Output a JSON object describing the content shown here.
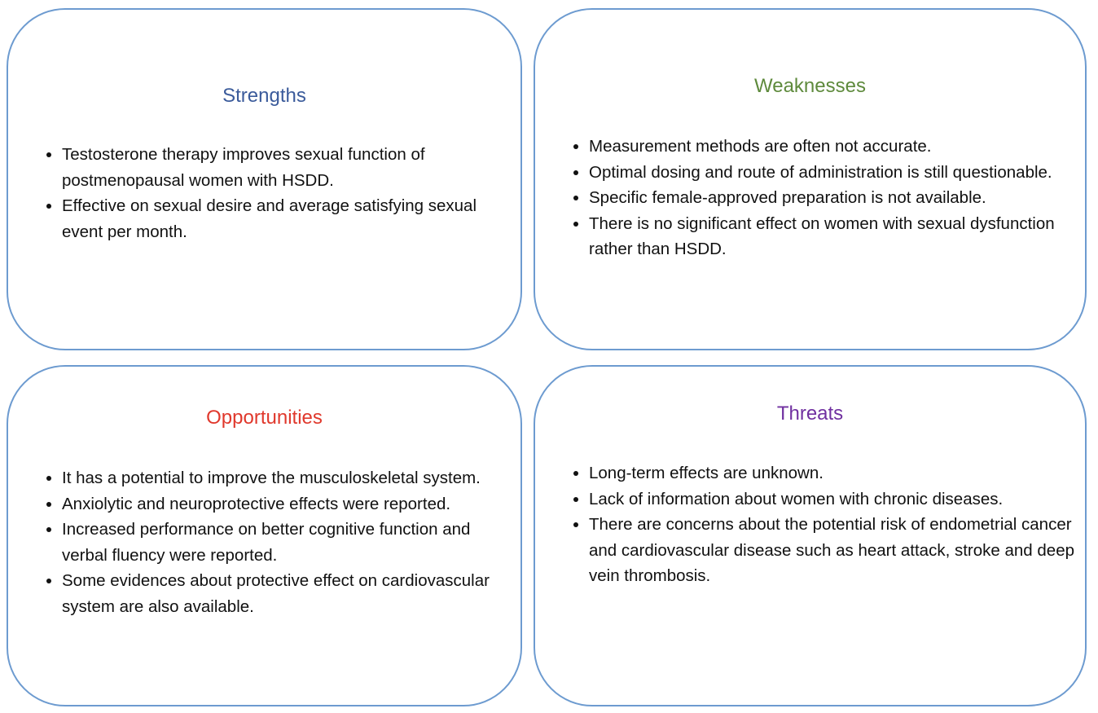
{
  "quadrants": [
    {
      "title": "Strengths",
      "color": "#3b5b9b",
      "items": [
        "Testosterone therapy improves sexual function of postmenopausal women with HSDD.",
        "Effective on sexual desire and average satisfying sexual event per month."
      ]
    },
    {
      "title": "Weaknesses",
      "color": "#5e8a3c",
      "items": [
        "Measurement methods are often not accurate.",
        "Optimal dosing and route of administration is still questionable.",
        "Specific female-approved preparation is not available.",
        "There is no significant effect on women with sexual dysfunction rather than HSDD."
      ]
    },
    {
      "title": "Opportunities",
      "color": "#e0382c",
      "items": [
        "It has a potential to improve the musculoskeletal system.",
        "Anxiolytic and neuroprotective effects were reported.",
        "Increased performance on better cognitive function and verbal fluency were reported.",
        "Some evidences about protective effect on cardiovascular system are also available."
      ]
    },
    {
      "title": "Threats",
      "color": "#7030a0",
      "items": [
        "Long-term effects are unknown.",
        "Lack of information about women with chronic diseases.",
        "There are concerns about the potential risk of endometrial cancer and cardiovascular disease such as heart attack, stroke and deep vein thrombosis."
      ]
    }
  ]
}
